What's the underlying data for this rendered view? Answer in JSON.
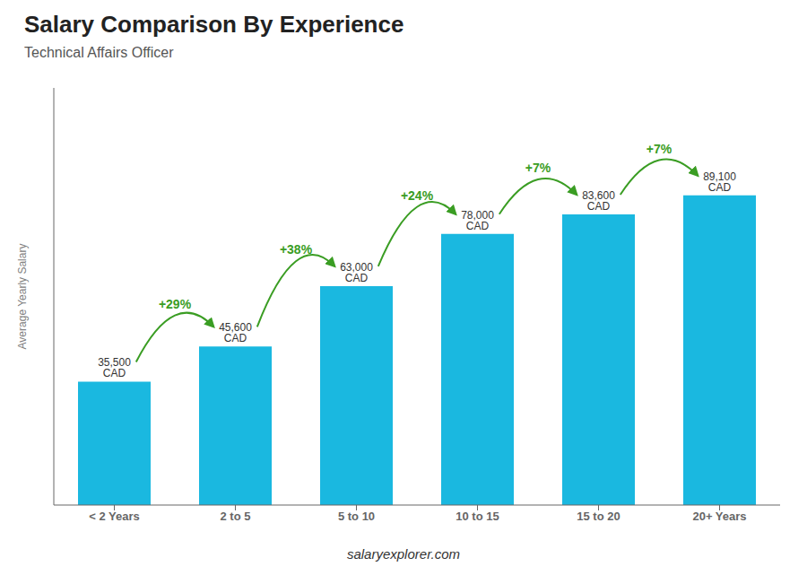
{
  "chart_data": {
    "type": "bar",
    "title": "Salary Comparison By Experience",
    "subtitle": "Technical Affairs Officer",
    "categories": [
      "< 2 Years",
      "2 to 5",
      "5 to 10",
      "10 to 15",
      "15 to 20",
      "20+ Years"
    ],
    "values": [
      35500,
      45600,
      63000,
      78000,
      83600,
      89100
    ],
    "value_labels": [
      "35,500 CAD",
      "45,600 CAD",
      "63,000 CAD",
      "78,000 CAD",
      "83,600 CAD",
      "89,100 CAD"
    ],
    "data_labels": true,
    "annotations": [
      "+29%",
      "+38%",
      "+24%",
      "+7%",
      "+7%"
    ],
    "y_label": "Average Yearly Salary",
    "footer": "salaryexplorer.com",
    "color": "#1ab8e0",
    "ylim": [
      0,
      120000
    ],
    "grid": false,
    "tick_labels": "x"
  }
}
